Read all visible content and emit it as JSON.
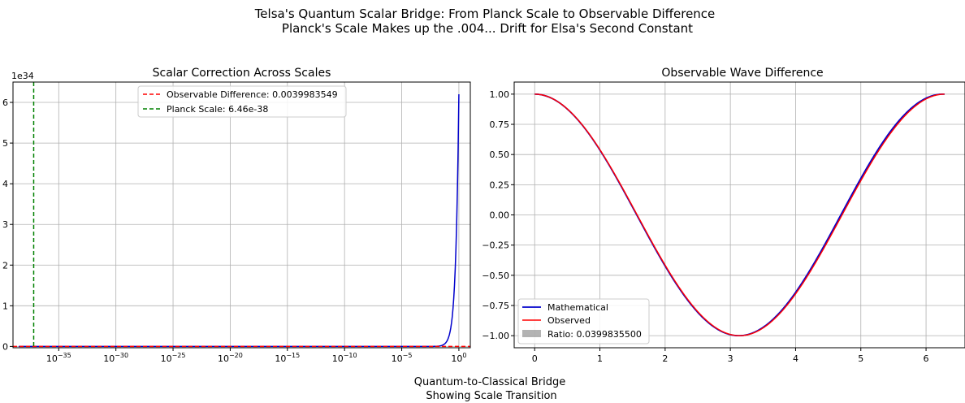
{
  "figure": {
    "suptitle_line1": "Telsa's Quantum Scalar Bridge: From Planck Scale to Observable Difference",
    "suptitle_line2": "Planck's Scale Makes up the .004... Drift for Elsa's Second Constant",
    "footer_line1": "Quantum-to-Classical Bridge",
    "footer_line2": "Showing Scale Transition"
  },
  "colors": {
    "blue": "#0000cc",
    "red": "#ff0000",
    "green": "#008000",
    "grid": "#b0b0b0",
    "fill": "#808080"
  },
  "chart_data": [
    {
      "type": "line",
      "title": "Scalar Correction Across Scales",
      "xscale": "log",
      "xlim": [
        1e-39,
        10.0
      ],
      "ylim": [
        -3.2e+32,
        6.5e+34
      ],
      "offset_label": "1e34",
      "x_ticks": [
        1e-35,
        1e-30,
        1e-25,
        1e-20,
        1e-15,
        1e-10,
        1e-05,
        1
      ],
      "x_tick_labels": [
        "10^-35",
        "10^-30",
        "10^-25",
        "10^-20",
        "10^-15",
        "10^-10",
        "10^-5",
        "10^0"
      ],
      "y_ticks": [
        0,
        1e+34,
        2e+34,
        3e+34,
        4e+34,
        5e+34,
        6e+34
      ],
      "y_tick_labels": [
        "0",
        "1",
        "2",
        "3",
        "4",
        "5",
        "6"
      ],
      "grid": true,
      "legend_position": "upper-center",
      "curve": {
        "x_max": 1,
        "y_max": 6.2e+34,
        "description_values": "correction rises from 0 to 6.2e34 as x approaches 1"
      },
      "hlines": [
        {
          "name": "Observable Difference: 0.0039983549",
          "y": 0.0039983549,
          "style": "dashed",
          "color": "red"
        }
      ],
      "vlines": [
        {
          "name": "Planck Scale: 6.46e-38",
          "x": 6.46e-38,
          "style": "dashed",
          "color": "green"
        }
      ],
      "legend": [
        "Observable Difference: 0.0039983549",
        "Planck Scale: 6.46e-38"
      ]
    },
    {
      "type": "line",
      "title": "Observable Wave Difference",
      "xlim": [
        -0.3141,
        6.597
      ],
      "ylim": [
        -1.1,
        1.1
      ],
      "x_ticks": [
        0,
        1,
        2,
        3,
        4,
        5,
        6
      ],
      "x_tick_labels": [
        "0",
        "1",
        "2",
        "3",
        "4",
        "5",
        "6"
      ],
      "y_ticks": [
        1.0,
        0.75,
        0.5,
        0.25,
        0.0,
        -0.25,
        -0.5,
        -0.75,
        -1.0
      ],
      "y_tick_labels": [
        "1.00",
        "0.75",
        "0.50",
        "0.25",
        "0.00",
        "−0.25",
        "−0.50",
        "−0.75",
        "−1.00"
      ],
      "grid": true,
      "legend_position": "lower-left",
      "x_range": [
        0,
        6.2832
      ],
      "series": [
        {
          "name": "Mathematical",
          "color": "blue",
          "formula": "cos(x*(1+0.0039983549))",
          "frequency": 1.0039983549
        },
        {
          "name": "Observed",
          "color": "red",
          "formula": "cos(x)",
          "frequency": 1.0
        }
      ],
      "fill": {
        "name": "Ratio: 0.0399835500",
        "between": [
          "Mathematical",
          "Observed"
        ]
      },
      "legend": [
        "Mathematical",
        "Observed",
        "Ratio: 0.0399835500"
      ]
    }
  ]
}
